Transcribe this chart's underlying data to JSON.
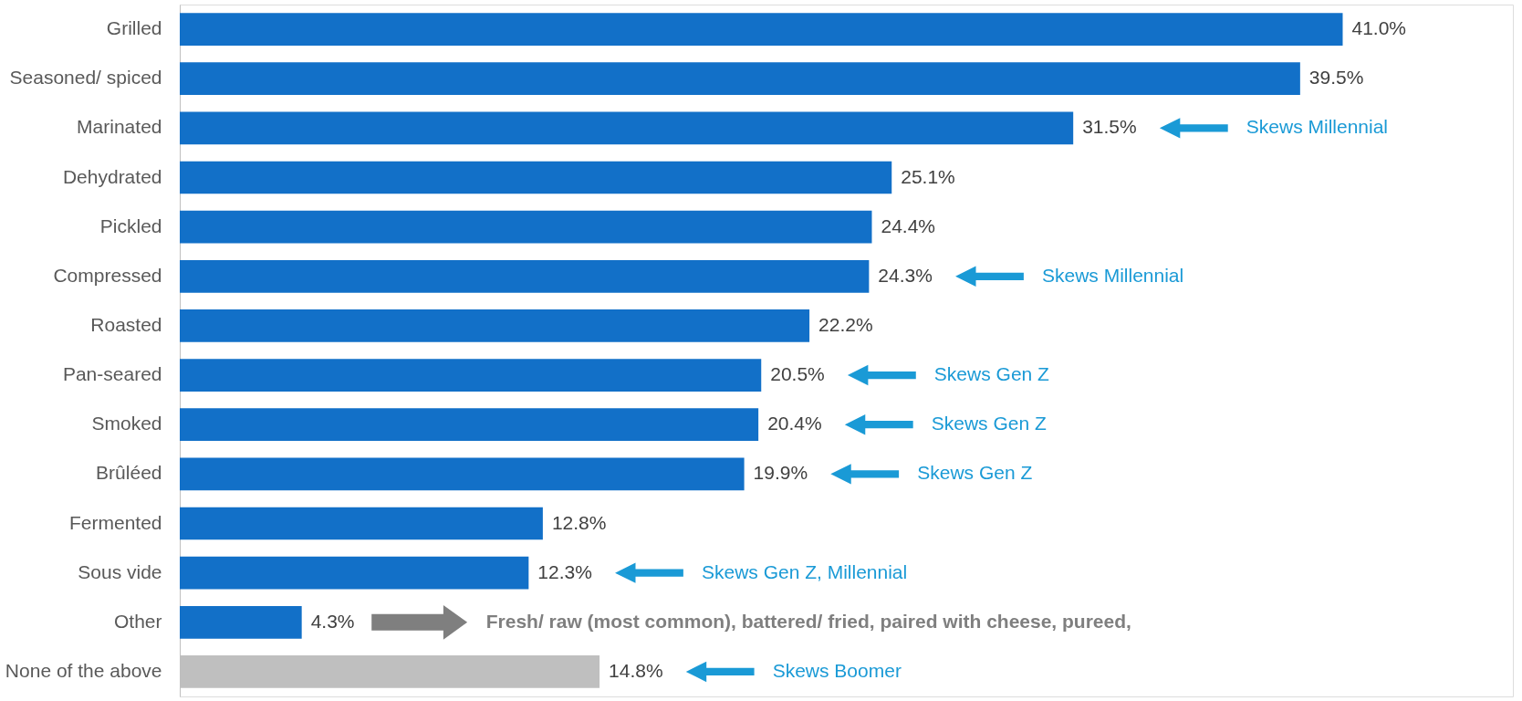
{
  "chart_data": {
    "type": "bar",
    "orientation": "horizontal",
    "categories": [
      "Grilled",
      "Seasoned/ spiced",
      "Marinated",
      "Dehydrated",
      "Pickled",
      "Compressed",
      "Roasted",
      "Pan-seared",
      "Smoked",
      "Brûléed",
      "Fermented",
      "Sous vide",
      "Other",
      "None of the above"
    ],
    "values": [
      41.0,
      39.5,
      31.5,
      25.1,
      24.4,
      24.3,
      22.2,
      20.5,
      20.4,
      19.9,
      12.8,
      12.3,
      4.3,
      14.8
    ],
    "value_labels": [
      "41.0%",
      "39.5%",
      "31.5%",
      "25.1%",
      "24.4%",
      "24.3%",
      "22.2%",
      "20.5%",
      "20.4%",
      "19.9%",
      "12.8%",
      "12.3%",
      "4.3%",
      "14.8%"
    ],
    "colors": [
      "#1270c8",
      "#1270c8",
      "#1270c8",
      "#1270c8",
      "#1270c8",
      "#1270c8",
      "#1270c8",
      "#1270c8",
      "#1270c8",
      "#1270c8",
      "#1270c8",
      "#1270c8",
      "#1270c8",
      "#bfbfbf"
    ],
    "xlim": [
      0,
      47
    ],
    "tick_labels": "y",
    "grid": false,
    "annotations": [
      "Skews Millennial",
      "Skews Millennial",
      "Skews Gen Z",
      "Skews Gen Z",
      "Skews Gen Z",
      "Skews Gen Z, Millennial",
      "Fresh/ raw (most common), battered/ fried, paired with cheese, pureed,",
      "Skews Boomer"
    ]
  }
}
